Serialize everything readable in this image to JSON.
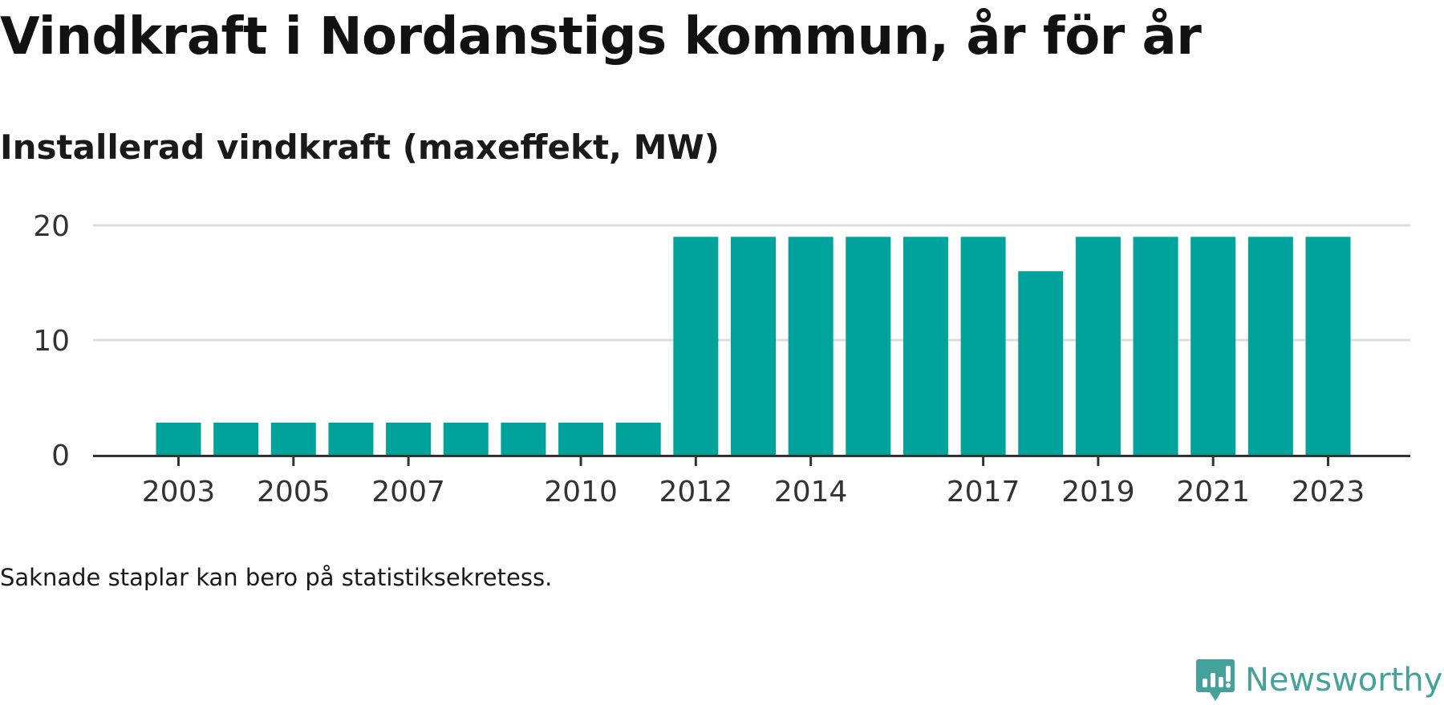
{
  "title": "Vindkraft i Nordanstigs kommun, år för år",
  "subtitle": "Installerad vindkraft (maxeffekt, MW)",
  "note": "Saknade staplar kan bero på statistiksekretess.",
  "brand": {
    "name": "Newsworthy",
    "color": "#45a29a"
  },
  "chart_data": {
    "type": "bar",
    "title": "Vindkraft i Nordanstigs kommun, år för år",
    "subtitle": "Installerad vindkraft (maxeffekt, MW)",
    "xlabel": "",
    "ylabel": "",
    "categories": [
      2003,
      2004,
      2005,
      2006,
      2007,
      2008,
      2009,
      2010,
      2011,
      2012,
      2013,
      2014,
      2015,
      2016,
      2017,
      2018,
      2019,
      2020,
      2021,
      2022,
      2023
    ],
    "values": [
      2.8,
      2.8,
      2.8,
      2.8,
      2.8,
      2.8,
      2.8,
      2.8,
      2.8,
      19,
      19,
      19,
      19,
      19,
      19,
      16,
      19,
      19,
      19,
      19,
      19
    ],
    "x_tick_labels": [
      "2003",
      "2005",
      "2007",
      "2010",
      "2012",
      "2014",
      "2017",
      "2019",
      "2021",
      "2023"
    ],
    "y_ticks": [
      0,
      10,
      20
    ],
    "ylim": [
      0,
      20
    ],
    "grid": true,
    "bar_color": "#00a39b",
    "grid_color": "#dcdcdc",
    "axis_color": "#333333"
  }
}
